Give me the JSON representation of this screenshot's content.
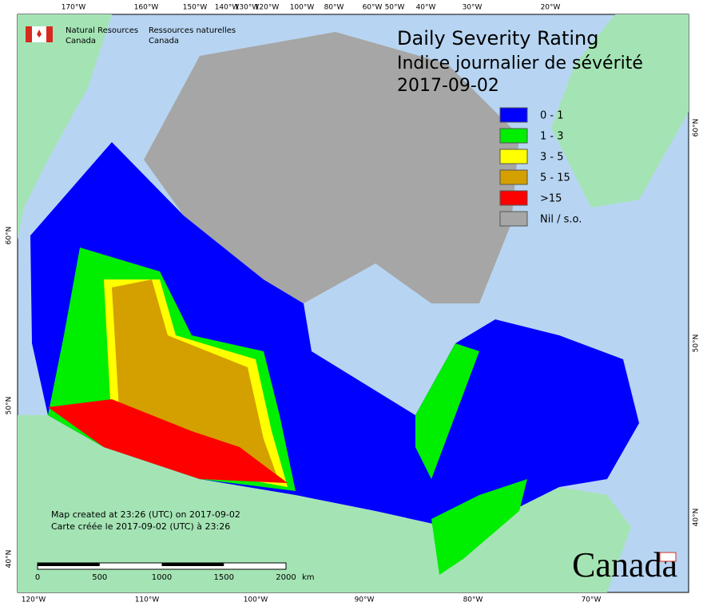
{
  "header": {
    "agency_en": [
      "Natural Resources",
      "Canada"
    ],
    "agency_fr": [
      "Ressources naturelles",
      "Canada"
    ],
    "title": [
      "Daily Severity Rating",
      "Indice journalier de sévérité",
      "2017-09-02"
    ]
  },
  "legend": [
    {
      "label": "0 - 1",
      "color": "#0000ff"
    },
    {
      "label": "1 - 3",
      "color": "#00ee00"
    },
    {
      "label": "3 - 5",
      "color": "#ffff00"
    },
    {
      "label": "5 - 15",
      "color": "#d4a000"
    },
    {
      "label": ">15",
      "color": "#ff0000"
    },
    {
      "label": "Nil / s.o.",
      "color": "#a6a6a6"
    }
  ],
  "graticule": {
    "top": [
      "170°W",
      "160°W",
      "150°W",
      "140°W",
      "130°W",
      "120°W",
      "100°W",
      "80°W",
      "60°W",
      "50°W",
      "40°W",
      "30°W",
      "20°W"
    ],
    "bottom": [
      "120°W",
      "110°W",
      "100°W",
      "90°W",
      "80°W",
      "70°W"
    ],
    "left": [
      "60°N",
      "50°N",
      "40°N"
    ],
    "right": [
      "60°N",
      "50°N",
      "40°N"
    ]
  },
  "notes": [
    "Map created at 23:26 (UTC) on 2017-09-02",
    "Carte créée le 2017-09-02 (UTC) à 23:26"
  ],
  "scale_bar": {
    "ticks": [
      0,
      500,
      1000,
      1500,
      2000
    ],
    "unit": "km"
  },
  "wordmark": "Canada"
}
